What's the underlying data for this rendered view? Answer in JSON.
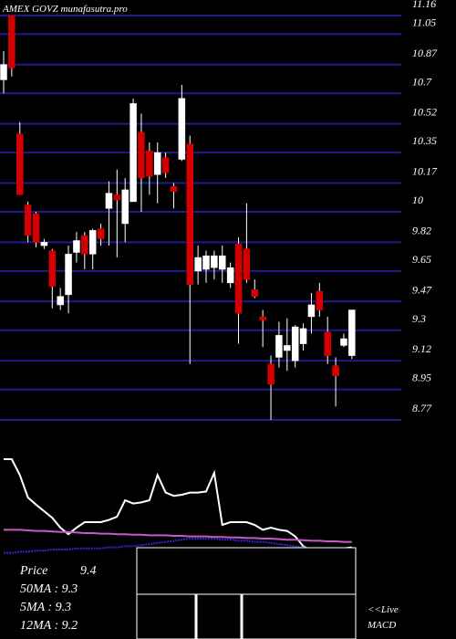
{
  "chart_data": {
    "type": "candlestick",
    "title": "AMEX  GOVZ munafasutra.pro",
    "open": [
      10.78,
      11.16,
      10.46,
      10.04,
      9.99,
      9.8,
      9.77,
      9.45,
      9.51,
      9.76,
      9.86,
      9.75,
      9.9,
      10.02,
      10.1,
      9.93,
      10.06,
      10.47,
      10.36,
      10.22,
      10.32,
      10.15,
      10.31,
      10.4,
      9.65,
      9.66,
      9.67,
      9.66,
      9.58,
      9.81,
      9.78,
      9.54,
      9.38,
      9.1,
      9.14,
      9.18,
      9.12,
      9.22,
      9.38,
      9.53,
      9.29,
      9.09,
      9.21,
      9.15
    ],
    "high": [
      10.95,
      11.16,
      10.53,
      10.06,
      10.0,
      9.84,
      9.78,
      9.55,
      9.8,
      9.88,
      9.88,
      9.9,
      9.93,
      10.18,
      10.25,
      10.2,
      10.67,
      10.58,
      10.41,
      10.41,
      10.35,
      10.17,
      10.75,
      10.45,
      9.8,
      9.77,
      9.77,
      9.8,
      9.7,
      9.85,
      10.05,
      9.6,
      9.42,
      9.15,
      9.35,
      9.37,
      9.33,
      9.34,
      9.52,
      9.58,
      9.38,
      9.14,
      9.28,
      9.42
    ],
    "low": [
      10.7,
      10.8,
      10.1,
      9.82,
      9.79,
      9.78,
      9.43,
      9.42,
      9.4,
      9.7,
      9.66,
      9.66,
      9.8,
      9.8,
      9.73,
      9.82,
      10.06,
      10.0,
      10.1,
      10.05,
      10.2,
      10.02,
      10.3,
      9.1,
      9.57,
      9.58,
      9.6,
      9.58,
      9.55,
      9.22,
      9.58,
      9.49,
      9.2,
      8.77,
      9.08,
      9.06,
      9.08,
      9.18,
      9.28,
      9.38,
      9.1,
      8.85,
      9.2,
      9.13
    ],
    "close": [
      10.87,
      10.85,
      10.1,
      9.86,
      9.82,
      9.82,
      9.56,
      9.5,
      9.75,
      9.83,
      9.75,
      9.89,
      9.84,
      10.11,
      10.07,
      10.13,
      10.64,
      10.2,
      10.21,
      10.35,
      10.23,
      10.12,
      10.67,
      9.57,
      9.73,
      9.74,
      9.74,
      9.74,
      9.67,
      9.4,
      9.6,
      9.5,
      9.36,
      8.98,
      9.27,
      9.21,
      9.32,
      9.31,
      9.45,
      9.42,
      9.15,
      9.03,
      9.25,
      9.42
    ],
    "up_color": "#ffffff",
    "down_color": "#d40000",
    "ylim": [
      8.77,
      11.16
    ],
    "yticks": [
      11.16,
      11.05,
      10.87,
      10.7,
      10.52,
      10.35,
      10.17,
      10,
      9.82,
      9.65,
      9.47,
      9.3,
      9.12,
      8.95,
      8.77
    ],
    "grid": true,
    "grid_color": "#1c1c8e",
    "indicator": {
      "ylim": [
        0,
        100
      ],
      "series": [
        {
          "color": "#ffffff",
          "values": [
            97.5,
            97.5,
            83,
            62.5,
            56,
            50,
            44,
            35,
            29,
            35,
            40,
            40,
            40,
            42,
            45,
            60,
            57,
            58,
            60,
            83,
            67,
            64,
            65,
            67,
            67,
            68,
            85,
            37.5,
            40,
            40,
            40,
            37.5,
            33,
            35,
            33,
            32,
            27,
            18,
            14,
            14,
            15,
            15,
            16,
            17
          ]
        },
        {
          "color": "#c65ac6",
          "values": [
            33,
            33,
            33,
            32.5,
            32,
            32,
            31.5,
            31,
            31,
            30.5,
            30,
            30,
            29.5,
            29.5,
            29,
            29,
            28.5,
            28.5,
            28,
            28,
            28,
            27.5,
            27.5,
            27,
            27,
            27,
            26.5,
            26.5,
            26,
            26,
            25.5,
            25.5,
            25,
            25,
            24.5,
            24,
            24,
            23.5,
            23,
            23,
            22.5,
            22.5,
            22,
            22
          ]
        },
        {
          "color": "#2a2ad0",
          "values": [
            12,
            12,
            13,
            13,
            14,
            14,
            15,
            15,
            15,
            16,
            16,
            16,
            16,
            17,
            17,
            18,
            18,
            19,
            20,
            21,
            22,
            23,
            24,
            25,
            25,
            25,
            25,
            24,
            24,
            23,
            23,
            22,
            22,
            21,
            20,
            19,
            18,
            17,
            16,
            16,
            15,
            15,
            16,
            16
          ]
        }
      ]
    },
    "legend": {
      "price_label": "Price",
      "price": "9.4",
      "ma50": "50MA : 9.3",
      "ma5": "5MA : 9.3",
      "ma12": "12MA : 9.2",
      "live": "<<Live",
      "macd": "MACD"
    }
  }
}
